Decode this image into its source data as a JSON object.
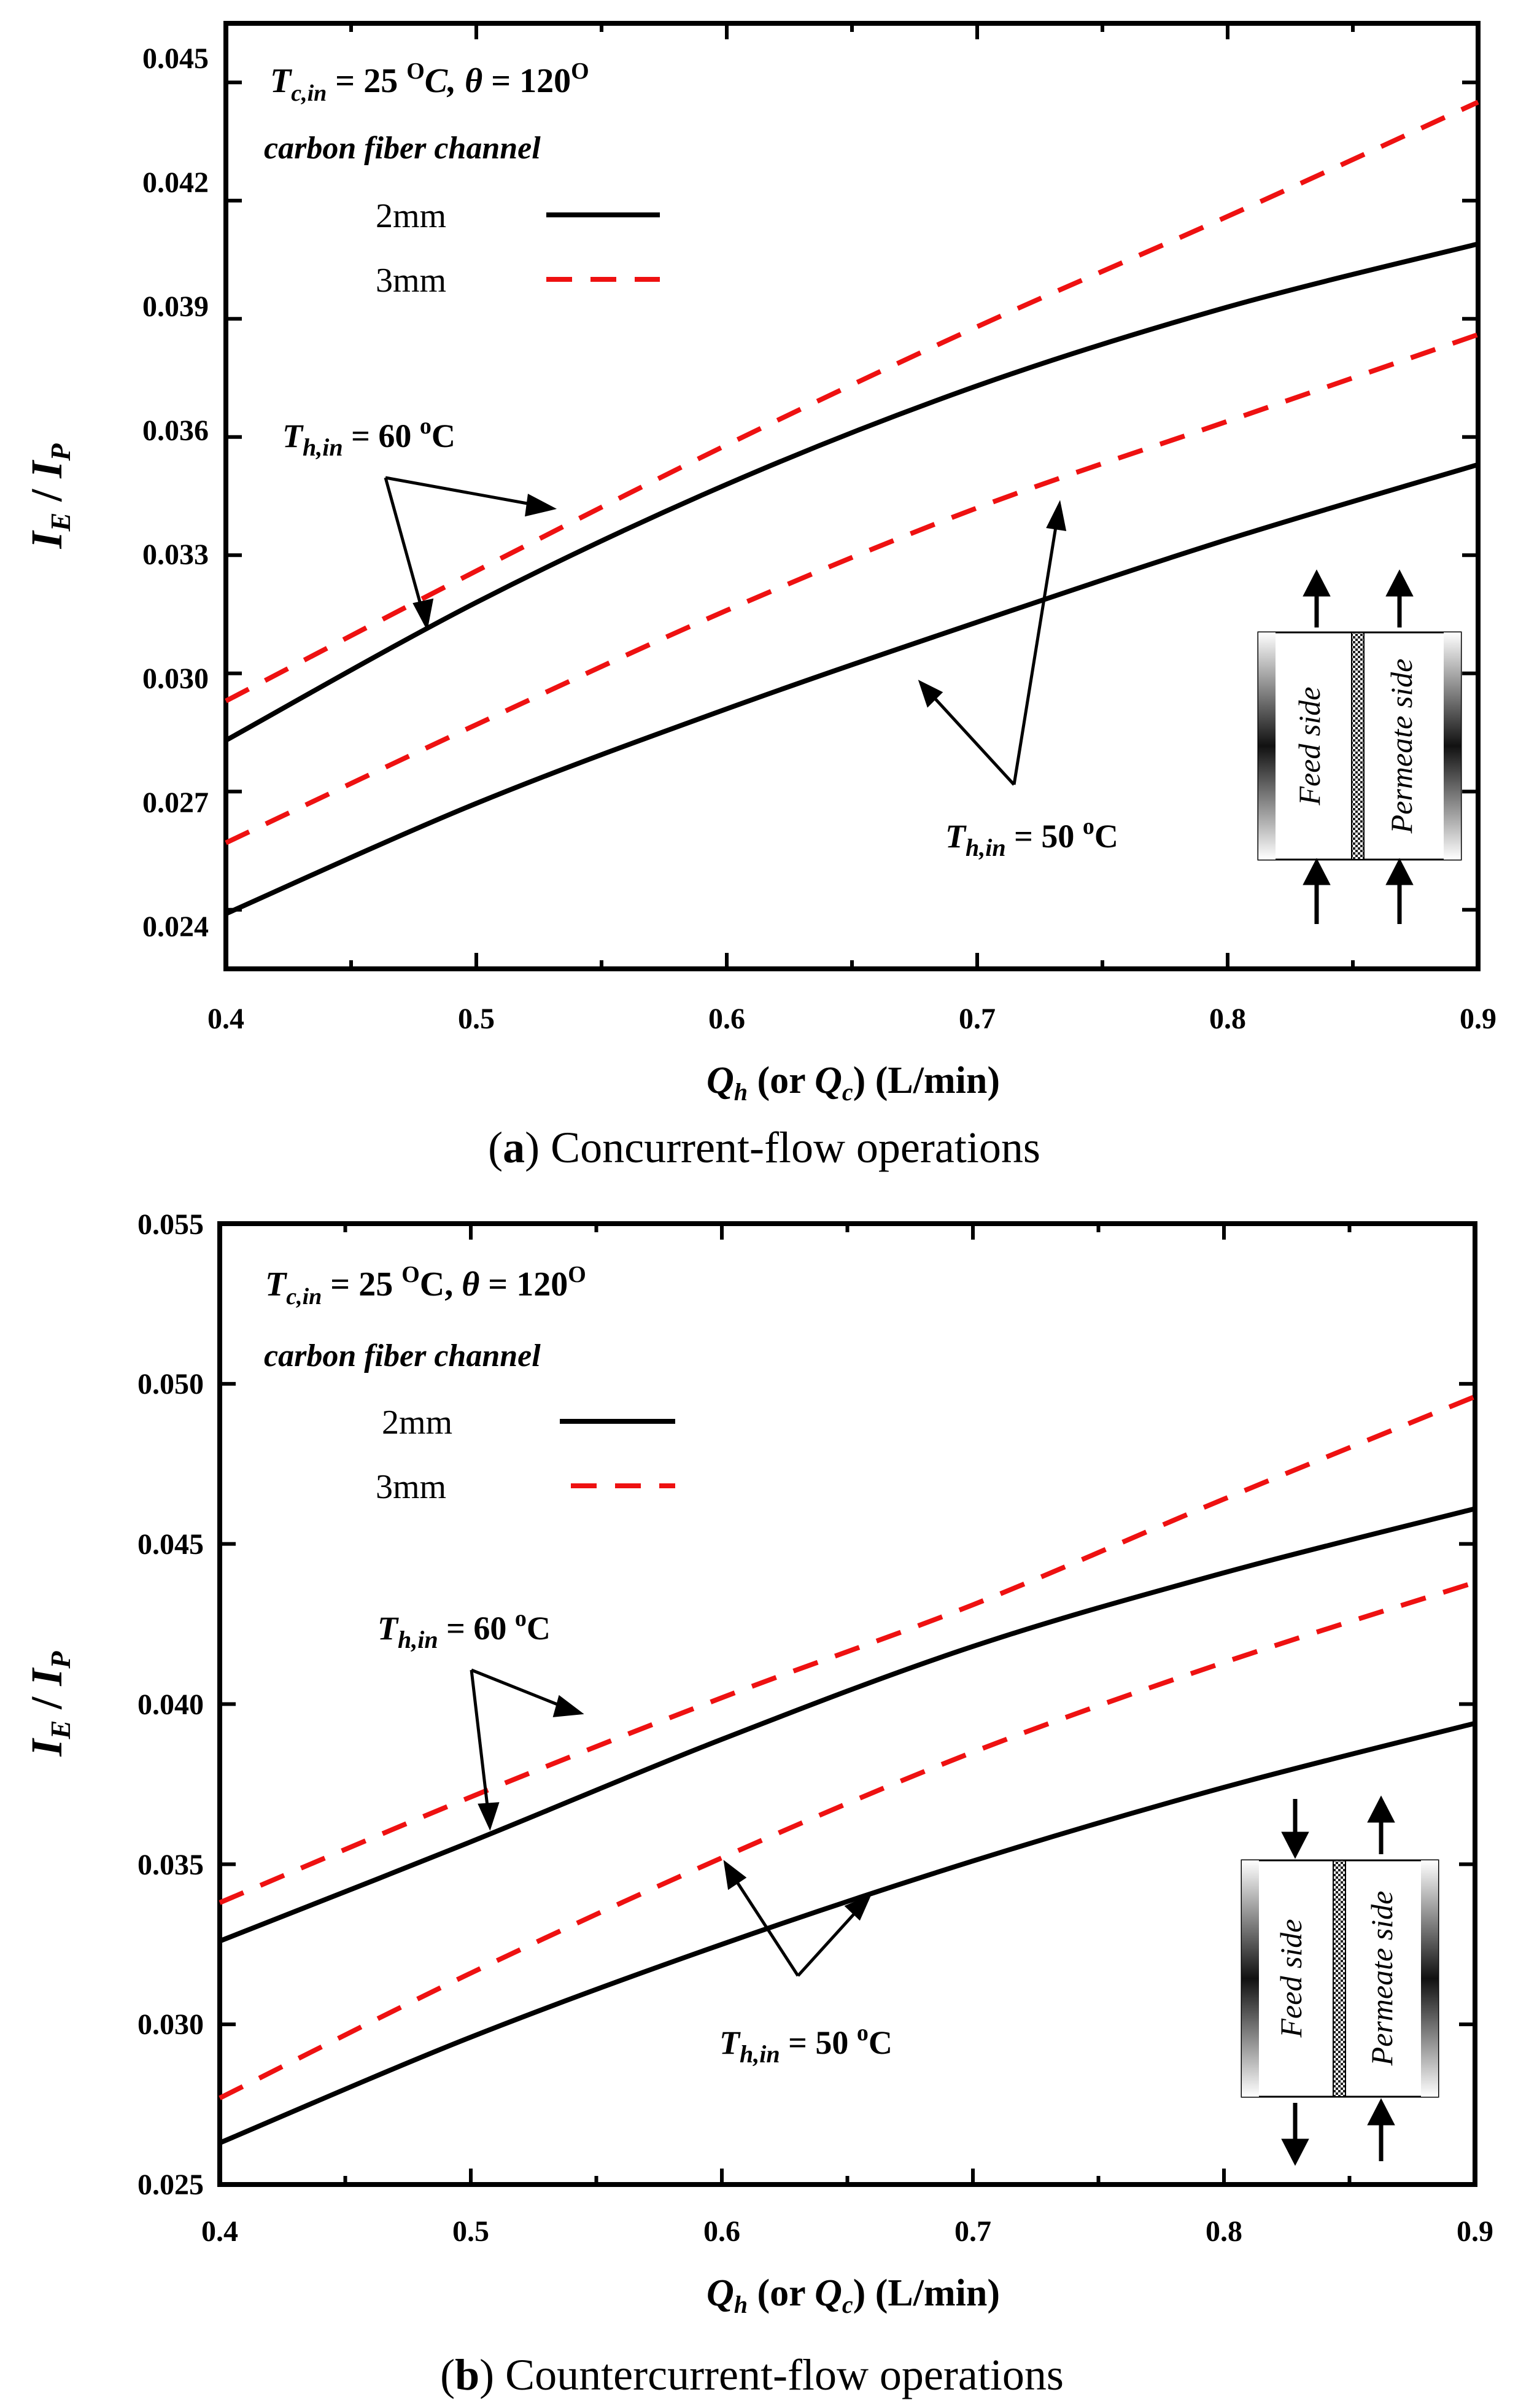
{
  "chart_data": [
    {
      "type": "line",
      "panel": "a",
      "caption_letter": "a",
      "caption_text": ") Concurrent-flow operations",
      "caption_open": "(",
      "xlabel": "Q_h (or Q_c) (L/min)",
      "ylabel": "I_E / I_P",
      "xlim": [
        0.4,
        0.9
      ],
      "ylim": [
        0.0225,
        0.0465
      ],
      "xticks": [
        "0.4",
        "0.5",
        "0.6",
        "0.7",
        "0.8",
        "0.9"
      ],
      "yticks": [
        "0.024",
        "0.027",
        "0.030",
        "0.033",
        "0.036",
        "0.039",
        "0.042",
        "0.045"
      ],
      "condition": "T_c,in = 25 °C, θ = 120°",
      "channel_label": "carbon fiber channel",
      "legend": [
        {
          "label": "2mm",
          "color": "#000000",
          "style": "solid"
        },
        {
          "label": "3mm",
          "color": "#ee1111",
          "style": "dashed"
        }
      ],
      "x": [
        0.4,
        0.5,
        0.6,
        0.7,
        0.8,
        0.9
      ],
      "series": [
        {
          "name": "3mm, T_h,in = 60 °C",
          "style": "dashed",
          "color": "#ee1111",
          "values": [
            0.0293,
            0.0326,
            0.0358,
            0.0388,
            0.0416,
            0.0445
          ]
        },
        {
          "name": "2mm, T_h,in = 60 °C",
          "style": "solid",
          "color": "#000000",
          "values": [
            0.0283,
            0.0318,
            0.0348,
            0.0373,
            0.0393,
            0.0409
          ]
        },
        {
          "name": "3mm, T_h,in = 50 °C",
          "style": "dashed",
          "color": "#ee1111",
          "values": [
            0.0257,
            0.0287,
            0.0316,
            0.0342,
            0.0364,
            0.0386
          ]
        },
        {
          "name": "2mm, T_h,in = 50 °C",
          "style": "solid",
          "color": "#000000",
          "values": [
            0.0239,
            0.0267,
            0.0291,
            0.0313,
            0.0334,
            0.0353
          ]
        }
      ],
      "annotations": {
        "t60_prefix": "T",
        "t60_sub": "h,in",
        "t60_value": " = 60 ",
        "t60_deg": "o",
        "t60_unit": "C",
        "t50_prefix": "T",
        "t50_sub": "h,in",
        "t50_value": " = 50 ",
        "t50_deg": "o",
        "t50_unit": "C"
      },
      "module": {
        "feed": "Feed side",
        "permeate": "Permeate side",
        "flow": "concurrent"
      }
    },
    {
      "type": "line",
      "panel": "b",
      "caption_letter": "b",
      "caption_text": ") Countercurrent-flow operations",
      "caption_open": "(",
      "xlabel": "Q_h (or Q_c) (L/min)",
      "ylabel": "I_E / I_P",
      "xlim": [
        0.4,
        0.9
      ],
      "ylim": [
        0.025,
        0.055
      ],
      "xticks": [
        "0.4",
        "0.5",
        "0.6",
        "0.7",
        "0.8",
        "0.9"
      ],
      "yticks": [
        "0.025",
        "0.030",
        "0.035",
        "0.040",
        "0.045",
        "0.050",
        "0.055"
      ],
      "condition": "T_c,in = 25 °C, θ = 120°",
      "channel_label": "carbon fiber channel",
      "legend": [
        {
          "label": "2mm",
          "color": "#000000",
          "style": "solid"
        },
        {
          "label": "3mm",
          "color": "#ee1111",
          "style": "dashed"
        }
      ],
      "x": [
        0.4,
        0.5,
        0.6,
        0.7,
        0.8,
        0.9
      ],
      "series": [
        {
          "name": "3mm, T_h,in = 60 °C",
          "style": "dashed",
          "color": "#ee1111",
          "values": [
            0.0338,
            0.0371,
            0.0402,
            0.0431,
            0.0464,
            0.0496
          ]
        },
        {
          "name": "2mm, T_h,in = 60 °C",
          "style": "solid",
          "color": "#000000",
          "values": [
            0.0326,
            0.0357,
            0.0389,
            0.0418,
            0.0441,
            0.0461
          ]
        },
        {
          "name": "3mm, T_h,in = 50 °C",
          "style": "dashed",
          "color": "#ee1111",
          "values": [
            0.0277,
            0.0316,
            0.0352,
            0.0385,
            0.0413,
            0.0438
          ]
        },
        {
          "name": "2mm, T_h,in = 50 °C",
          "style": "solid",
          "color": "#000000",
          "values": [
            0.0263,
            0.0296,
            0.0325,
            0.0351,
            0.0374,
            0.0394
          ]
        }
      ],
      "annotations": {
        "t60_prefix": "T",
        "t60_sub": "h,in",
        "t60_value": " = 60 ",
        "t60_deg": "o",
        "t60_unit": "C",
        "t50_prefix": "T",
        "t50_sub": "h,in",
        "t50_value": " = 50 ",
        "t50_deg": "o",
        "t50_unit": "C"
      },
      "module": {
        "feed": "Feed side",
        "permeate": "Permeate side",
        "flow": "countercurrent"
      }
    }
  ]
}
